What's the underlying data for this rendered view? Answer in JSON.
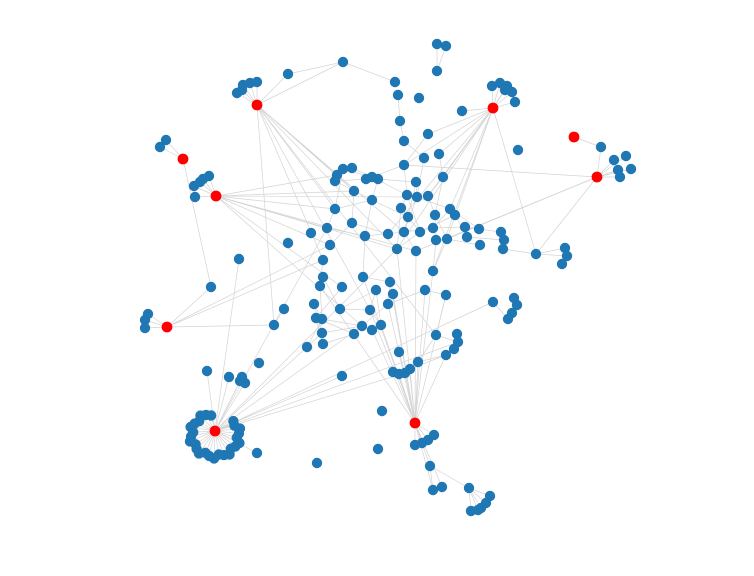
{
  "colors": {
    "background": "#ffffff",
    "edge": "#d4d4d4",
    "node": "#1f77b4",
    "hub": "#ff0000"
  },
  "graph": {
    "type": "network",
    "node_kinds": [
      "regular",
      "hub"
    ],
    "hub_count": 9,
    "labels_shown": false
  }
}
